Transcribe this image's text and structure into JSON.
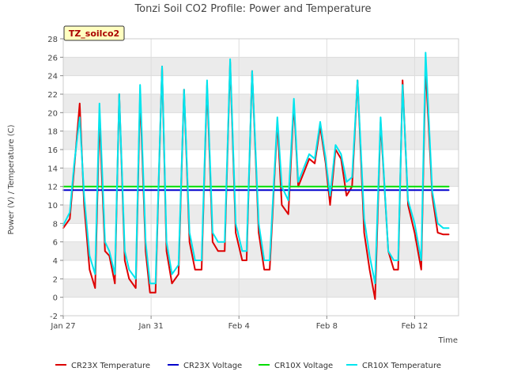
{
  "chart_data": {
    "type": "line",
    "title": "Tonzi Soil CO2 Profile: Power and Temperature",
    "xlabel": "Time",
    "ylabel": "Power (V) / Temperature (C)",
    "site_label": "TZ_soilco2",
    "x_ticks": [
      {
        "label": "Jan 27",
        "day": 0
      },
      {
        "label": "Jan 31",
        "day": 4
      },
      {
        "label": "Feb 4",
        "day": 8
      },
      {
        "label": "Feb 8",
        "day": 12
      },
      {
        "label": "Feb 12",
        "day": 16
      }
    ],
    "xlim_days": [
      0,
      18
    ],
    "ylim": [
      -2,
      28
    ],
    "y_ticks": [
      -2,
      0,
      2,
      4,
      6,
      8,
      10,
      12,
      14,
      16,
      18,
      20,
      22,
      24,
      26,
      28
    ],
    "grid": true,
    "band_fills": {
      "light": "#ebebeb",
      "white": "#ffffff"
    },
    "legend_position": "bottom",
    "series": [
      {
        "name": "CR23X Temperature",
        "color": "#dd0000",
        "x": [
          0.0,
          0.3,
          0.5,
          0.75,
          0.95,
          1.2,
          1.45,
          1.65,
          1.9,
          2.1,
          2.35,
          2.55,
          2.8,
          3.0,
          3.3,
          3.5,
          3.75,
          3.95,
          4.2,
          4.5,
          4.7,
          4.95,
          5.25,
          5.5,
          5.75,
          6.0,
          6.3,
          6.55,
          6.8,
          7.05,
          7.35,
          7.6,
          7.85,
          8.15,
          8.35,
          8.6,
          8.9,
          9.15,
          9.4,
          9.75,
          9.95,
          10.25,
          10.5,
          10.7,
          10.95,
          11.2,
          11.45,
          11.7,
          11.95,
          12.15,
          12.4,
          12.65,
          12.9,
          13.15,
          13.4,
          13.7,
          13.95,
          14.2,
          14.45,
          14.8,
          15.05,
          15.25,
          15.45,
          15.7,
          16.0,
          16.3,
          16.5,
          16.8,
          17.05,
          17.3,
          17.55
        ],
        "y": [
          7.5,
          8.5,
          14.0,
          21.0,
          10.0,
          3.0,
          1.0,
          19.5,
          5.0,
          4.5,
          1.5,
          22.0,
          4.0,
          2.0,
          1.0,
          22.0,
          5.0,
          0.5,
          0.5,
          25.0,
          5.0,
          1.5,
          2.5,
          22.5,
          6.0,
          3.0,
          3.0,
          23.0,
          6.0,
          5.0,
          5.0,
          25.5,
          7.0,
          4.0,
          4.0,
          24.5,
          7.0,
          3.0,
          3.0,
          19.0,
          10.0,
          9.0,
          21.0,
          12.0,
          13.5,
          15.0,
          14.5,
          18.5,
          14.5,
          10.0,
          16.0,
          15.0,
          11.0,
          12.0,
          23.5,
          7.0,
          3.0,
          -0.2,
          19.0,
          5.0,
          3.0,
          3.0,
          23.5,
          10.0,
          7.0,
          3.0,
          25.0,
          11.0,
          7.0,
          6.8,
          6.8
        ]
      },
      {
        "name": "CR23X Voltage",
        "color": "#0000cc",
        "x": [
          0.0,
          17.55
        ],
        "y": [
          11.6,
          11.6
        ]
      },
      {
        "name": "CR10X Voltage",
        "color": "#00dd00",
        "x": [
          0.0,
          17.55
        ],
        "y": [
          12.0,
          12.0
        ]
      },
      {
        "name": "CR10X Temperature",
        "color": "#00e5ee",
        "x": [
          0.0,
          0.3,
          0.5,
          0.75,
          0.95,
          1.2,
          1.45,
          1.65,
          1.9,
          2.1,
          2.35,
          2.55,
          2.8,
          3.0,
          3.3,
          3.5,
          3.75,
          3.95,
          4.2,
          4.5,
          4.7,
          4.95,
          5.25,
          5.5,
          5.75,
          6.0,
          6.3,
          6.55,
          6.8,
          7.05,
          7.35,
          7.6,
          7.85,
          8.15,
          8.35,
          8.6,
          8.9,
          9.15,
          9.4,
          9.75,
          9.95,
          10.25,
          10.5,
          10.7,
          10.95,
          11.2,
          11.45,
          11.7,
          11.95,
          12.15,
          12.4,
          12.65,
          12.9,
          13.15,
          13.4,
          13.7,
          13.95,
          14.2,
          14.45,
          14.8,
          15.05,
          15.25,
          15.45,
          15.7,
          16.0,
          16.3,
          16.5,
          16.8,
          17.05,
          17.3,
          17.55
        ],
        "y": [
          7.8,
          9.2,
          14.5,
          19.5,
          11.0,
          4.5,
          2.5,
          21.0,
          6.0,
          5.0,
          2.5,
          22.0,
          5.0,
          3.0,
          2.0,
          23.0,
          6.0,
          1.5,
          1.5,
          25.0,
          6.0,
          2.5,
          3.5,
          22.5,
          7.0,
          4.0,
          4.0,
          23.5,
          7.0,
          6.0,
          6.0,
          25.8,
          8.0,
          5.0,
          5.0,
          24.5,
          8.0,
          4.0,
          4.0,
          19.5,
          12.0,
          10.5,
          21.5,
          12.5,
          14.0,
          15.5,
          15.0,
          19.0,
          15.0,
          11.0,
          16.5,
          15.5,
          12.5,
          13.0,
          23.5,
          8.5,
          4.5,
          1.5,
          19.5,
          5.0,
          4.0,
          4.0,
          23.0,
          10.5,
          8.0,
          4.0,
          26.5,
          11.5,
          8.0,
          7.5,
          7.5
        ]
      }
    ]
  }
}
